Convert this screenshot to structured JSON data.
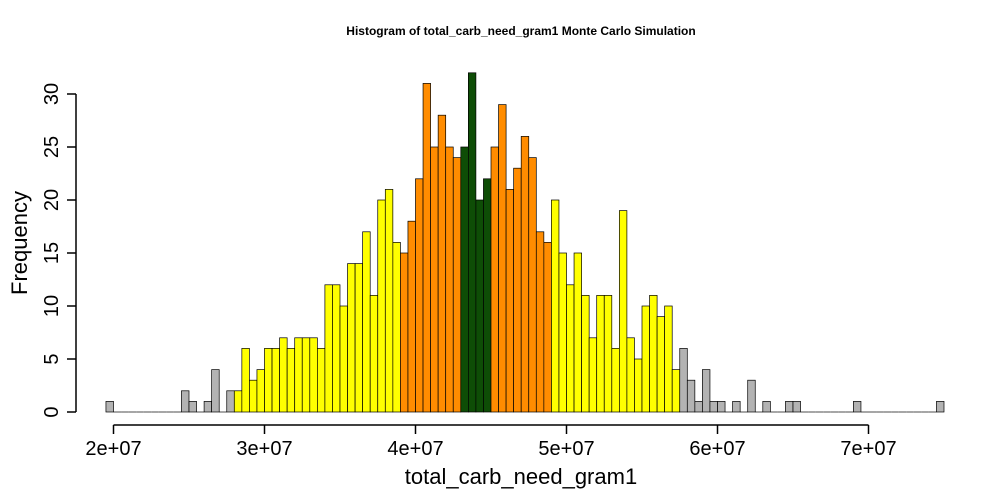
{
  "chart_data": {
    "type": "bar",
    "title": "Histogram of  total_carb_need_gram1  Monte Carlo Simulation",
    "xlabel": "total_carb_need_gram1",
    "ylabel": "Frequency",
    "xlim": [
      20000000,
      75000000
    ],
    "ylim": [
      0,
      32
    ],
    "bin_start": 19500000,
    "bin_width": 500000,
    "x_ticks": [
      {
        "value": 20000000,
        "label": "2e+07"
      },
      {
        "value": 30000000,
        "label": "3e+07"
      },
      {
        "value": 40000000,
        "label": "4e+07"
      },
      {
        "value": 50000000,
        "label": "5e+07"
      },
      {
        "value": 60000000,
        "label": "6e+07"
      },
      {
        "value": 70000000,
        "label": "7e+07"
      }
    ],
    "y_ticks": [
      {
        "value": 0,
        "label": "0"
      },
      {
        "value": 5,
        "label": "5"
      },
      {
        "value": 10,
        "label": "10"
      },
      {
        "value": 15,
        "label": "15"
      },
      {
        "value": 20,
        "label": "20"
      },
      {
        "value": 25,
        "label": "25"
      },
      {
        "value": 30,
        "label": "30"
      }
    ],
    "colors": {
      "tail": "#b3b3b3",
      "outer": "#ffff00",
      "inner": "#ff8c00",
      "center": "#0e4d06"
    },
    "color_bands": [
      {
        "from": 19500000,
        "to": 28000000,
        "color": "tail"
      },
      {
        "from": 28000000,
        "to": 39000000,
        "color": "outer"
      },
      {
        "from": 39000000,
        "to": 43000000,
        "color": "inner"
      },
      {
        "from": 43000000,
        "to": 45000000,
        "color": "center"
      },
      {
        "from": 45000000,
        "to": 49000000,
        "color": "inner"
      },
      {
        "from": 49000000,
        "to": 57500000,
        "color": "outer"
      },
      {
        "from": 57500000,
        "to": 75000000,
        "color": "tail"
      }
    ],
    "values": [
      1,
      0,
      0,
      0,
      0,
      0,
      0,
      0,
      0,
      0,
      2,
      1,
      0,
      1,
      4,
      0,
      2,
      2,
      6,
      3,
      4,
      6,
      6,
      7,
      6,
      7,
      7,
      7,
      6,
      12,
      12,
      10,
      14,
      14,
      17,
      11,
      20,
      21,
      16,
      15,
      18,
      22,
      31,
      25,
      28,
      25,
      24,
      25,
      32,
      20,
      22,
      25,
      29,
      21,
      23,
      26,
      24,
      17,
      16,
      20,
      15,
      12,
      15,
      11,
      7,
      11,
      11,
      6,
      19,
      7,
      5,
      10,
      11,
      9,
      10,
      4,
      6,
      3,
      1,
      4,
      1,
      1,
      0,
      1,
      0,
      3,
      0,
      1,
      0,
      0,
      1,
      1,
      0,
      0,
      0,
      0,
      0,
      0,
      0,
      1,
      0,
      0,
      0,
      0,
      0,
      0,
      0,
      0,
      0,
      0,
      1
    ]
  }
}
